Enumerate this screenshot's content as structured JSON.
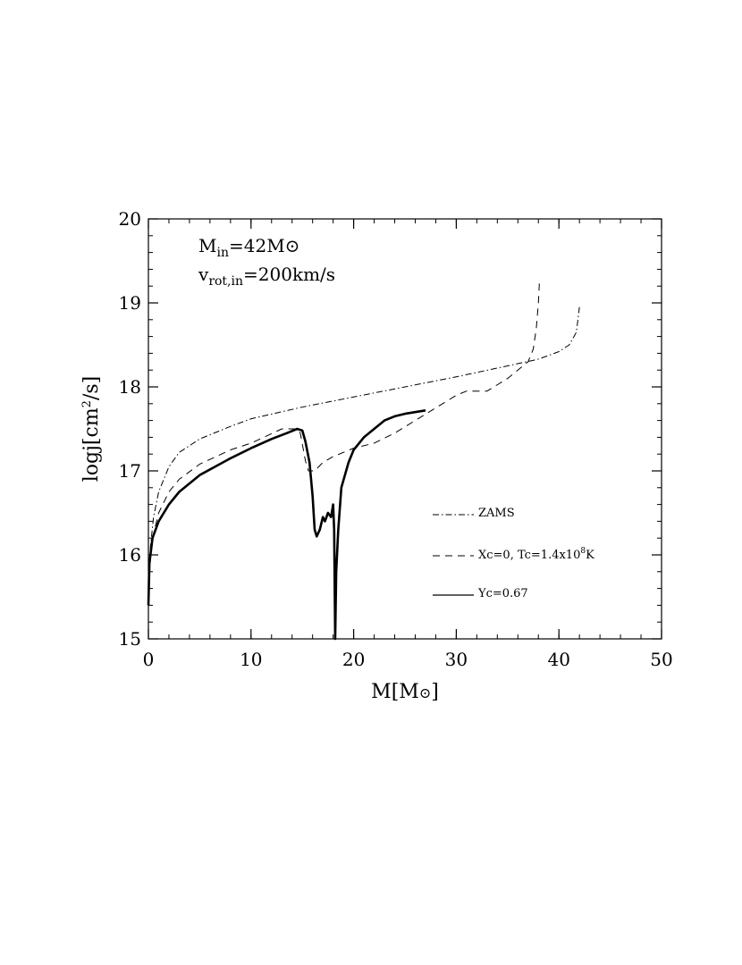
{
  "chart_data": {
    "type": "line",
    "xlabel": {
      "main": "M[M",
      "sym": "⊙",
      "close": "]"
    },
    "ylabel": {
      "main": "logj[cm",
      "sup": "2",
      "rest": "/s]"
    },
    "xlim": [
      0,
      50
    ],
    "ylim": [
      15,
      20
    ],
    "xticks": [
      0,
      10,
      20,
      30,
      40,
      50
    ],
    "yticks": [
      15,
      16,
      17,
      18,
      19,
      20
    ],
    "xtick_labels": [
      "0",
      "10",
      "20",
      "30",
      "40",
      "50"
    ],
    "ytick_labels": [
      "15",
      "16",
      "17",
      "18",
      "19",
      "20"
    ],
    "x_minor_step": 2,
    "y_minor_step": 0.2,
    "grid": false,
    "legend_position": "lower-right",
    "annotations": {
      "line1": {
        "main": "M",
        "sub": "in",
        "rest": "=42M",
        "sym": "⊙"
      },
      "line2": {
        "main": "v",
        "sub": "rot,in",
        "rest": "=200km/s"
      }
    },
    "series": [
      {
        "name": "ZAMS",
        "style": "dashdot",
        "points": [
          [
            0,
            15.6
          ],
          [
            0.2,
            16.1
          ],
          [
            0.5,
            16.45
          ],
          [
            1,
            16.75
          ],
          [
            2,
            17.05
          ],
          [
            3,
            17.22
          ],
          [
            5,
            17.38
          ],
          [
            8,
            17.53
          ],
          [
            10,
            17.62
          ],
          [
            15,
            17.76
          ],
          [
            20,
            17.88
          ],
          [
            25,
            18.0
          ],
          [
            30,
            18.12
          ],
          [
            35,
            18.25
          ],
          [
            38,
            18.33
          ],
          [
            40,
            18.42
          ],
          [
            41,
            18.5
          ],
          [
            41.7,
            18.65
          ],
          [
            42,
            18.95
          ]
        ]
      },
      {
        "name": "Xc=0,  Tc=1.4x10⁸K",
        "legend_parts": {
          "main": "Xc=0,  Tc=1.4x10",
          "sup": "8",
          "rest": "K"
        },
        "style": "dashed",
        "points": [
          [
            0,
            15.6
          ],
          [
            0.2,
            15.95
          ],
          [
            0.5,
            16.25
          ],
          [
            1,
            16.5
          ],
          [
            2,
            16.75
          ],
          [
            3,
            16.9
          ],
          [
            5,
            17.08
          ],
          [
            8,
            17.25
          ],
          [
            10,
            17.33
          ],
          [
            13,
            17.5
          ],
          [
            14.5,
            17.5
          ],
          [
            14.8,
            17.45
          ],
          [
            15.3,
            17.12
          ],
          [
            15.6,
            17.0
          ],
          [
            16.2,
            17.0
          ],
          [
            17,
            17.1
          ],
          [
            18,
            17.17
          ],
          [
            19,
            17.22
          ],
          [
            20,
            17.27
          ],
          [
            22,
            17.33
          ],
          [
            24,
            17.45
          ],
          [
            26,
            17.6
          ],
          [
            28,
            17.75
          ],
          [
            30,
            17.9
          ],
          [
            31,
            17.95
          ],
          [
            33,
            17.95
          ],
          [
            35,
            18.1
          ],
          [
            37,
            18.3
          ],
          [
            37.5,
            18.45
          ],
          [
            37.8,
            18.7
          ],
          [
            38,
            19.0
          ],
          [
            38.1,
            19.25
          ]
        ]
      },
      {
        "name": "Yc=0.67",
        "style": "solid",
        "points": [
          [
            0,
            15.4
          ],
          [
            0.1,
            15.9
          ],
          [
            0.4,
            16.2
          ],
          [
            1,
            16.4
          ],
          [
            2,
            16.6
          ],
          [
            3,
            16.75
          ],
          [
            5,
            16.95
          ],
          [
            8,
            17.15
          ],
          [
            10,
            17.27
          ],
          [
            12,
            17.38
          ],
          [
            13.5,
            17.45
          ],
          [
            14.5,
            17.5
          ],
          [
            15,
            17.48
          ],
          [
            15.3,
            17.35
          ],
          [
            15.7,
            17.1
          ],
          [
            16,
            16.7
          ],
          [
            16.2,
            16.3
          ],
          [
            16.4,
            16.22
          ],
          [
            16.7,
            16.3
          ],
          [
            17,
            16.45
          ],
          [
            17.2,
            16.4
          ],
          [
            17.5,
            16.5
          ],
          [
            17.8,
            16.45
          ],
          [
            18.0,
            16.6
          ],
          [
            18.1,
            16.3
          ],
          [
            18.2,
            15.0
          ],
          [
            18.3,
            15.8
          ],
          [
            18.5,
            16.3
          ],
          [
            18.8,
            16.8
          ],
          [
            19.5,
            17.1
          ],
          [
            20,
            17.25
          ],
          [
            21,
            17.4
          ],
          [
            22,
            17.5
          ],
          [
            23,
            17.6
          ],
          [
            24,
            17.65
          ],
          [
            25,
            17.68
          ],
          [
            26,
            17.7
          ],
          [
            27,
            17.72
          ]
        ]
      }
    ]
  }
}
